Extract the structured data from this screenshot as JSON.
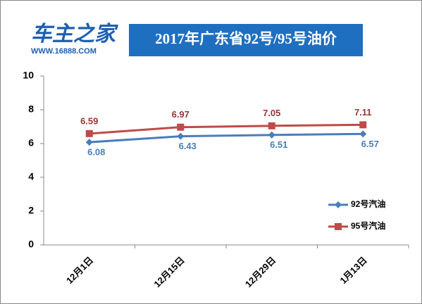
{
  "logo": {
    "name": "车主之家",
    "url": "WWW.16888.COM"
  },
  "chart_data": {
    "type": "line",
    "title": "2017年广东省92号/95号油价",
    "categories": [
      "12月1日",
      "12月15日",
      "12月29日",
      "1月13日"
    ],
    "series": [
      {
        "name": "92号汽油",
        "color": "#4a7ebb",
        "marker": "diamond",
        "values": [
          6.08,
          6.43,
          6.51,
          6.57
        ]
      },
      {
        "name": "95号汽油",
        "color": "#be4b48",
        "marker": "square",
        "values": [
          6.59,
          6.97,
          7.05,
          7.11
        ]
      }
    ],
    "ylim": [
      0,
      10
    ],
    "yticks": [
      0,
      2,
      4,
      6,
      8,
      10
    ],
    "grid": false,
    "legend": "right"
  }
}
